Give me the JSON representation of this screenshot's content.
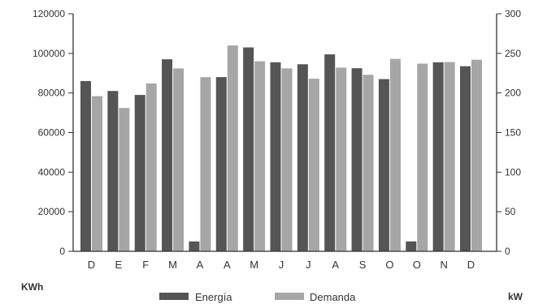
{
  "chart_data": {
    "type": "bar",
    "categories": [
      "D",
      "E",
      "F",
      "M",
      "A",
      "A",
      "M",
      "J",
      "J",
      "A",
      "S",
      "O",
      "O",
      "N",
      "D"
    ],
    "series": [
      {
        "name": "Energía",
        "axis": "left",
        "color": "#555555",
        "values": [
          86000,
          81000,
          79000,
          97000,
          5000,
          88000,
          103000,
          95500,
          94500,
          99500,
          92500,
          87000,
          5000,
          95500,
          93500
        ]
      },
      {
        "name": "Demanda",
        "axis": "right",
        "color": "#a6a6a6",
        "values": [
          196,
          181,
          212,
          231,
          220,
          260,
          240,
          231,
          218,
          232,
          223,
          243,
          237,
          239,
          242
        ]
      }
    ],
    "y_left": {
      "label": "KWh",
      "ylim": [
        0,
        120000
      ],
      "ticks": [
        "0",
        "20000",
        "40000",
        "60000",
        "80000",
        "100000",
        "120000"
      ]
    },
    "y_right": {
      "label": "kW",
      "ylim": [
        0,
        300
      ],
      "ticks": [
        "0",
        "50",
        "100",
        "150",
        "200",
        "250",
        "300"
      ]
    },
    "legend": {
      "position": "bottom",
      "labels": [
        "Energía",
        "Demanda"
      ]
    },
    "grid": false
  }
}
